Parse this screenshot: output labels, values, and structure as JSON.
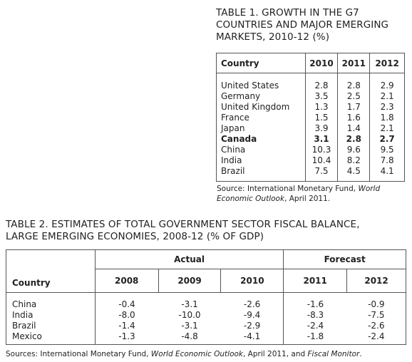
{
  "table1": {
    "title_lines": [
      "TABLE 1. GROWTH IN THE G7",
      "COUNTRIES AND MAJOR EMERGING",
      "MARKETS, 2010-12 (%)"
    ],
    "columns": [
      "Country",
      "2010",
      "2011",
      "2012"
    ],
    "rows": [
      [
        "United States",
        "2.8",
        "2.8",
        "2.9"
      ],
      [
        "Germany",
        "3.5",
        "2.5",
        "2.1"
      ],
      [
        "United Kingdom",
        "1.3",
        "1.7",
        "2.3"
      ],
      [
        "France",
        "1.5",
        "1.6",
        "1.8"
      ],
      [
        "Japan",
        "3.9",
        "1.4",
        "2.1"
      ],
      [
        "Canada",
        "3.1",
        "2.8",
        "2.7"
      ],
      [
        "China",
        "10.3",
        "9.6",
        "9.5"
      ],
      [
        "India",
        "10.4",
        "8.2",
        "7.8"
      ],
      [
        "Brazil",
        "7.5",
        "4.5",
        "4.1"
      ]
    ],
    "source": [
      "Source: International Monetary Fund, ",
      "World Economic Outlook",
      ", April 2011."
    ]
  },
  "table2": {
    "title_lines": [
      "TABLE 2. ESTIMATES OF TOTAL GOVERNMENT SECTOR FISCAL BALANCE,",
      "LARGE EMERGING ECONOMIES, 2008-12 (% OF GDP)"
    ],
    "groups": [
      "Actual",
      "Forecast"
    ],
    "columns": [
      "Country",
      "2008",
      "2009",
      "2010",
      "2011",
      "2012"
    ],
    "rows": [
      [
        "China",
        "-0.4",
        "-3.1",
        "-2.6",
        "-1.6",
        "-0.9"
      ],
      [
        "India",
        "-8.0",
        "-10.0",
        "-9.4",
        "-8.3",
        "-7.5"
      ],
      [
        "Brazil",
        "-1.4",
        "-3.1",
        "-2.9",
        "-2.4",
        "-2.6"
      ],
      [
        "Mexico",
        "-1.3",
        "-4.8",
        "-4.1",
        "-1.8",
        "-2.4"
      ]
    ],
    "source": [
      "Sources: International Monetary Fund, ",
      "World Economic Outlook",
      ", April 2011, and ",
      "Fiscal Monitor",
      "."
    ]
  }
}
